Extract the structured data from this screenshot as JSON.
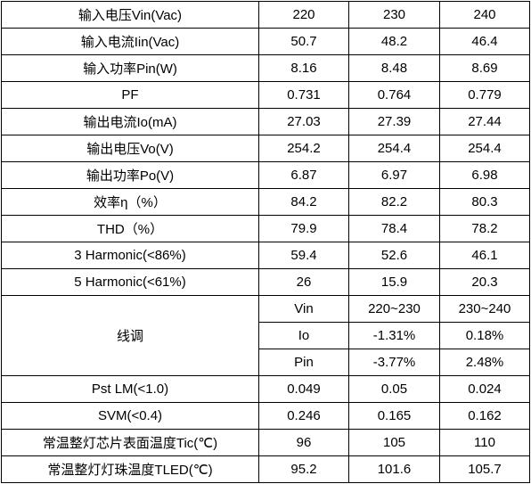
{
  "rows": [
    {
      "label": "输入电压Vin(Vac)",
      "v1": "220",
      "v2": "230",
      "v3": "240"
    },
    {
      "label": "输入电流Iin(Vac)",
      "v1": "50.7",
      "v2": "48.2",
      "v3": "46.4"
    },
    {
      "label": "输入功率Pin(W)",
      "v1": "8.16",
      "v2": "8.48",
      "v3": "8.69"
    },
    {
      "label": "PF",
      "v1": "0.731",
      "v2": "0.764",
      "v3": "0.779"
    },
    {
      "label": "输出电流Io(mA)",
      "v1": "27.03",
      "v2": "27.39",
      "v3": "27.44"
    },
    {
      "label": "输出电压Vo(V)",
      "v1": "254.2",
      "v2": "254.4",
      "v3": "254.4"
    },
    {
      "label": "输出功率Po(V)",
      "v1": "6.87",
      "v2": "6.97",
      "v3": "6.98"
    },
    {
      "label": "效率η（%）",
      "v1": "84.2",
      "v2": "82.2",
      "v3": "80.3"
    },
    {
      "label": "THD（%）",
      "v1": "79.9",
      "v2": "78.4",
      "v3": "78.2"
    },
    {
      "label": "3 Harmonic(<86%)",
      "v1": "59.4",
      "v2": "52.6",
      "v3": "46.1"
    },
    {
      "label": "5 Harmonic(<61%)",
      "v1": "26",
      "v2": "15.9",
      "v3": "20.3"
    }
  ],
  "line_reg": {
    "label": "线调",
    "rows": [
      {
        "param": "Vin",
        "v1": "220~230",
        "v2": "230~240"
      },
      {
        "param": "Io",
        "v1": "-1.31%",
        "v2": "0.18%"
      },
      {
        "param": "Pin",
        "v1": "-3.77%",
        "v2": "2.48%"
      }
    ]
  },
  "rows_bottom": [
    {
      "label": "Pst LM(<1.0)",
      "v1": "0.049",
      "v2": "0.05",
      "v3": "0.024"
    },
    {
      "label": "SVM(<0.4)",
      "v1": "0.246",
      "v2": "0.165",
      "v3": "0.162"
    },
    {
      "label": "常温整灯芯片表面温度Tic(℃)",
      "v1": "96",
      "v2": "105",
      "v3": "110"
    },
    {
      "label": "常温整灯灯珠温度TLED(℃)",
      "v1": "95.2",
      "v2": "101.6",
      "v3": "105.7"
    }
  ]
}
